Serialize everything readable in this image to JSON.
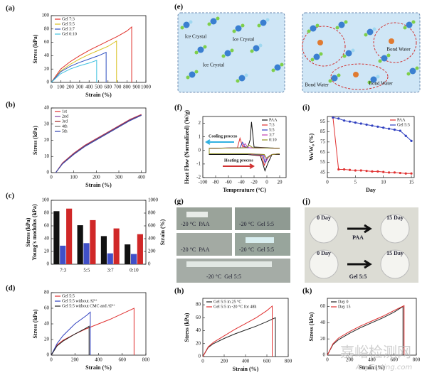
{
  "chart_data": [
    {
      "type": "line",
      "label": "(a)",
      "xlabel": "Strain (%)",
      "ylabel": "Stress (kPa)",
      "xlim": [
        0,
        1000
      ],
      "xticks": [
        0,
        100,
        200,
        300,
        400,
        500,
        600,
        700,
        800,
        900,
        1000
      ],
      "ylim": [
        0,
        100
      ],
      "yticks": [
        0,
        20,
        40,
        60,
        80,
        100
      ],
      "legend": "upper left",
      "series": [
        {
          "name": "Gel 7:3",
          "color": "#e0302a",
          "x": [
            0,
            100,
            200,
            300,
            400,
            500,
            600,
            700,
            800,
            850,
            850
          ],
          "values": [
            0,
            20,
            31,
            40,
            48,
            55,
            62,
            69,
            77,
            83,
            0
          ]
        },
        {
          "name": "Gel 5:5",
          "color": "#d8c020",
          "x": [
            0,
            100,
            200,
            300,
            400,
            500,
            600,
            690,
            690
          ],
          "values": [
            0,
            17,
            27,
            35,
            42,
            48,
            54,
            62,
            0
          ]
        },
        {
          "name": "Gel 3:7",
          "color": "#3050c0",
          "x": [
            0,
            100,
            200,
            300,
            400,
            500,
            580,
            580
          ],
          "values": [
            0,
            16,
            24,
            30,
            35,
            40,
            45,
            0
          ]
        },
        {
          "name": "Gel 0:10",
          "color": "#40c0e0",
          "x": [
            0,
            100,
            200,
            300,
            400,
            480,
            480
          ],
          "values": [
            0,
            13,
            20,
            25,
            29,
            33,
            0
          ]
        }
      ]
    },
    {
      "type": "line",
      "label": "(b)",
      "xlabel": "Strain (%)",
      "ylabel": "Stress (kPa)",
      "xlim": [
        0,
        420
      ],
      "xticks": [
        0,
        100,
        200,
        300,
        400
      ],
      "ylim": [
        0,
        40
      ],
      "yticks": [
        0,
        10,
        20,
        30,
        40
      ],
      "legend": "upper left",
      "series": [
        {
          "name": "1st",
          "color": "#e03030",
          "x": [
            20,
            50,
            100,
            150,
            200,
            250,
            300,
            350,
            400
          ],
          "values": [
            0,
            6,
            12,
            17,
            21,
            25,
            29,
            33,
            36
          ]
        },
        {
          "name": "2nd",
          "color": "#8040a0",
          "x": [
            20,
            50,
            100,
            150,
            200,
            250,
            300,
            350,
            400
          ],
          "values": [
            0,
            5.8,
            11.8,
            16.8,
            20.8,
            24.8,
            28.8,
            32.8,
            35.8
          ]
        },
        {
          "name": "3rd",
          "color": "#a02020",
          "x": [
            20,
            50,
            100,
            150,
            200,
            250,
            300,
            350,
            400
          ],
          "values": [
            0,
            5.6,
            11.6,
            16.6,
            20.6,
            24.6,
            28.6,
            32.6,
            35.6
          ]
        },
        {
          "name": "4th",
          "color": "#707070",
          "x": [
            20,
            50,
            100,
            150,
            200,
            250,
            300,
            350,
            400
          ],
          "values": [
            0,
            5.5,
            11.4,
            16.4,
            20.4,
            24.4,
            28.4,
            32.4,
            35.5
          ]
        },
        {
          "name": "5th",
          "color": "#3040b0",
          "x": [
            20,
            50,
            100,
            150,
            200,
            250,
            300,
            350,
            400
          ],
          "values": [
            0,
            5.4,
            11.2,
            16.2,
            20.2,
            24.2,
            28.2,
            32.2,
            35.4
          ]
        }
      ]
    },
    {
      "type": "bar",
      "label": "(c)",
      "ylabel": "Stress (kPa)",
      "ylabel_2": "Young's modulus (kPa)",
      "y2label": "Strain (%)",
      "categories": [
        "7:3",
        "5:5",
        "3:7",
        "0:10"
      ],
      "ylim": [
        0,
        100
      ],
      "yticks": [
        0,
        20,
        40,
        60,
        80,
        100
      ],
      "y2lim": [
        0,
        1000
      ],
      "y2ticks": [
        0,
        200,
        400,
        600,
        800,
        1000
      ],
      "series": [
        {
          "color": "#111111",
          "values": [
            83,
            61,
            44,
            31
          ]
        },
        {
          "color": "#4050c8",
          "values": [
            29,
            33,
            17,
            16
          ]
        },
        {
          "color": "#d02828",
          "axis": "y2",
          "values": [
            870,
            690,
            560,
            470
          ]
        }
      ]
    },
    {
      "type": "line",
      "label": "(d)",
      "xlabel": "Strain (%)",
      "ylabel": "Stress (kPa)",
      "xlim": [
        0,
        800
      ],
      "xticks": [
        0,
        200,
        400,
        600,
        800
      ],
      "ylim": [
        0,
        80
      ],
      "yticks": [
        0,
        20,
        40,
        60,
        80
      ],
      "legend": "upper left",
      "series": [
        {
          "name": "Gel 5:5",
          "color": "#e03030",
          "x": [
            0,
            50,
            100,
            200,
            300,
            400,
            500,
            600,
            700,
            700
          ],
          "values": [
            0,
            13,
            19,
            27,
            34,
            40,
            46,
            53,
            60,
            0
          ]
        },
        {
          "name": "Gel 5:5 without Al³⁺",
          "color": "#3040c0",
          "x": [
            0,
            50,
            100,
            200,
            300,
            330,
            330
          ],
          "values": [
            0,
            15,
            25,
            40,
            51,
            55,
            0
          ]
        },
        {
          "name": "Gel 5:5 without CMC and Al³⁺",
          "color": "#222222",
          "x": [
            0,
            50,
            100,
            200,
            300,
            320,
            320
          ],
          "values": [
            0,
            12,
            18,
            27,
            35,
            37,
            0
          ]
        }
      ]
    },
    {
      "type": "line",
      "label": "(f)",
      "xlabel": "Temperature (°C)",
      "ylabel": "Heat Flow (Normalized) (W/g)",
      "xlim": [
        -100,
        30
      ],
      "xticks": [
        -100,
        -80,
        -60,
        -40,
        -20,
        0,
        20
      ],
      "ylim": [
        -2,
        2.5
      ],
      "yticks": [
        -2,
        -1,
        0,
        1,
        2
      ],
      "legend": "upper right",
      "annotations": [
        "Cooling process",
        "Heating process"
      ],
      "series": [
        {
          "name": "PAA",
          "color": "#111111",
          "x": [
            20,
            0,
            -20,
            -24,
            -26,
            -30,
            -90,
            -90,
            -30,
            -10,
            -3,
            2,
            8,
            20
          ],
          "values": [
            0.15,
            0.2,
            0.25,
            2.1,
            0.8,
            0.2,
            0.15,
            -0.3,
            -0.3,
            -0.4,
            -1.5,
            -0.9,
            -0.3,
            -0.3
          ]
        },
        {
          "name": "7:3",
          "color": "#e03030",
          "x": [
            20,
            -30,
            -38,
            -42,
            -46,
            -90,
            -90,
            -30,
            -8,
            -4,
            0,
            8,
            20
          ],
          "values": [
            0.15,
            0.2,
            0.3,
            0.9,
            0.2,
            0.15,
            -0.25,
            -0.25,
            -0.4,
            -1.1,
            -0.6,
            -0.3,
            -0.25
          ]
        },
        {
          "name": "5:5",
          "color": "#3040c0",
          "x": [
            20,
            -30,
            -35,
            -38,
            -42,
            -90,
            -90,
            -30,
            -6,
            -3,
            1,
            8,
            20
          ],
          "values": [
            0.15,
            0.2,
            0.3,
            0.6,
            0.2,
            0.15,
            -0.25,
            -0.25,
            -0.35,
            -0.9,
            -0.5,
            -0.3,
            -0.25
          ]
        },
        {
          "name": "3:7",
          "color": "#c040b0",
          "x": [
            20,
            -28,
            -31,
            -34,
            -38,
            -90,
            -90,
            -30,
            -5,
            -1,
            3,
            8,
            20
          ],
          "values": [
            0.15,
            0.2,
            0.3,
            0.5,
            0.2,
            0.15,
            -0.25,
            -0.25,
            -0.3,
            -0.8,
            -0.45,
            -0.3,
            -0.25
          ]
        },
        {
          "name": "0:10",
          "color": "#909020",
          "x": [
            20,
            -22,
            -25,
            -28,
            -32,
            -90,
            -90,
            -30,
            -4,
            0,
            4,
            8,
            20
          ],
          "values": [
            0.15,
            0.2,
            0.3,
            0.4,
            0.2,
            0.15,
            -0.25,
            -0.25,
            -0.3,
            -0.6,
            -0.4,
            -0.3,
            -0.25
          ]
        }
      ]
    },
    {
      "type": "line",
      "label": "(h)",
      "xlabel": "Strain (%)",
      "ylabel": "Stress (kPa)",
      "xlim": [
        0,
        800
      ],
      "xticks": [
        0,
        200,
        400,
        600,
        800
      ],
      "ylim": [
        0,
        90
      ],
      "yticks": [
        0,
        20,
        40,
        60,
        80
      ],
      "legend": "upper left",
      "series": [
        {
          "name": "Gel 5:5 in 25 °C",
          "color": "#222222",
          "x": [
            0,
            50,
            100,
            200,
            300,
            400,
            500,
            600,
            680,
            680
          ],
          "values": [
            0,
            14,
            20,
            28,
            35,
            41,
            47,
            54,
            60,
            0
          ]
        },
        {
          "name": "Gel 5:5 in -20 °C for 48h",
          "color": "#e03030",
          "x": [
            0,
            50,
            100,
            200,
            300,
            400,
            500,
            600,
            650,
            650
          ],
          "values": [
            0,
            15,
            22,
            32,
            42,
            51,
            60,
            71,
            78,
            0
          ]
        }
      ]
    },
    {
      "type": "line",
      "label": "(i)",
      "xlabel": "Day",
      "ylabel": "Wₜ/W₀ (%)",
      "markers": true,
      "xlim": [
        0,
        15.5
      ],
      "xticks": [
        0,
        5,
        10,
        15
      ],
      "ylim": [
        40,
        100
      ],
      "yticks": [
        45,
        55,
        65,
        75,
        85,
        95
      ],
      "legend": "upper right",
      "x": [
        1,
        2,
        3,
        4,
        5,
        6,
        7,
        8,
        9,
        10,
        11,
        12,
        13,
        14,
        15
      ],
      "series": [
        {
          "name": "PAA",
          "color": "#e03030",
          "values": [
            99,
            48,
            48,
            47.5,
            47,
            47,
            46.5,
            46,
            46,
            45.5,
            45,
            45,
            44.5,
            44,
            44
          ]
        },
        {
          "name": "Gel 5:5",
          "color": "#3040c0",
          "values": [
            99,
            98,
            96,
            95,
            94,
            93,
            92,
            91,
            90,
            89,
            88,
            87,
            86,
            81,
            76
          ]
        }
      ]
    },
    {
      "type": "line",
      "label": "(k)",
      "xlabel": "Strain (%)",
      "ylabel": "Stress (kPa)",
      "xlim": [
        0,
        800
      ],
      "xticks": [
        0,
        200,
        400,
        600,
        800
      ],
      "ylim": [
        0,
        70
      ],
      "yticks": [
        0,
        20,
        40,
        60
      ],
      "legend": "upper left",
      "series": [
        {
          "name": "Day 0",
          "color": "#222222",
          "x": [
            0,
            50,
            100,
            200,
            300,
            400,
            500,
            600,
            680,
            680
          ],
          "values": [
            0,
            13,
            19,
            27,
            34,
            40,
            46,
            53,
            60,
            0
          ]
        },
        {
          "name": "Day 15",
          "color": "#e03030",
          "x": [
            0,
            50,
            100,
            200,
            300,
            400,
            500,
            600,
            690,
            690
          ],
          "values": [
            0,
            14,
            21,
            29,
            36,
            42,
            48,
            55,
            61,
            0
          ]
        }
      ]
    }
  ],
  "diagram_e": {
    "label": "(e)",
    "texts": [
      "Ice Crystal",
      "Ice Crystal",
      "Ice Crystal",
      "Bond Water",
      "Bond Water",
      "Bond Water"
    ]
  },
  "photos_g": {
    "label": "(g)",
    "captions": [
      "-20 °C  PAA",
      "-20 °C  Gel 5:5",
      "-20 °C  PAA",
      "-20 °C  Gel 5:5",
      "-20 °C  Gel 5:5"
    ]
  },
  "photos_j": {
    "label": "(j)",
    "texts": [
      "0 Day",
      "15 Day",
      "PAA",
      "0 Day",
      "15 Day",
      "Gel 5:5"
    ]
  },
  "watermark": [
    "嘉峪检测网",
    "AnyTesting.com"
  ]
}
